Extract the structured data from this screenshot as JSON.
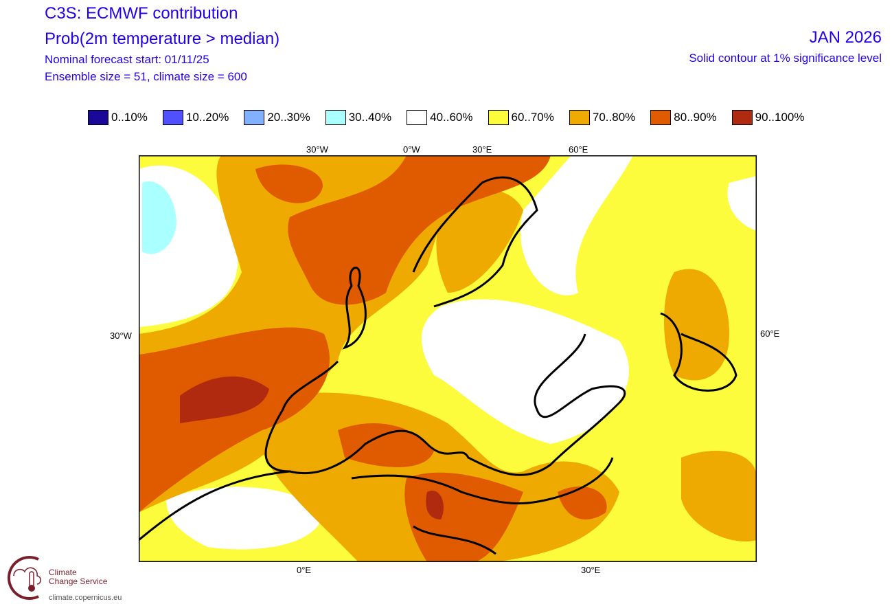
{
  "header": {
    "title": "C3S: ECMWF contribution",
    "subtitle": "Prob(2m temperature > median)",
    "forecast_start": "Nominal forecast start: 01/11/25",
    "ensemble": "Ensemble size = 51, climate size = 600",
    "month": "JAN 2026",
    "significance": "Solid contour at 1% significance level"
  },
  "legend": [
    {
      "label": "0..10%",
      "color": "#1a0898"
    },
    {
      "label": "10..20%",
      "color": "#5050ff"
    },
    {
      "label": "20..30%",
      "color": "#80b0ff"
    },
    {
      "label": "30..40%",
      "color": "#aaffff"
    },
    {
      "label": "40..60%",
      "color": "#ffffff"
    },
    {
      "label": "60..70%",
      "color": "#fcfc3c"
    },
    {
      "label": "70..80%",
      "color": "#eeaa00"
    },
    {
      "label": "80..90%",
      "color": "#e05a00"
    },
    {
      "label": "90..100%",
      "color": "#b02a10"
    }
  ],
  "axes": {
    "top": [
      "30°W",
      "0°W",
      "30°E",
      "60°E"
    ],
    "left": "30°W",
    "right": "60°E",
    "bottom": [
      "0°E",
      "30°E"
    ]
  },
  "logo": {
    "line1": "Climate",
    "line2": "Change Service",
    "url": "climate.copernicus.eu"
  }
}
